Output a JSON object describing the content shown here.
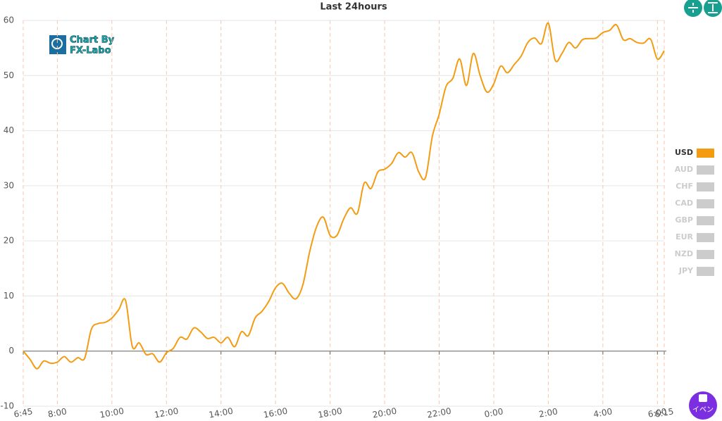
{
  "chart_data": {
    "type": "line",
    "title": "Last 24hours",
    "x": [
      "6:45",
      "7:00",
      "7:15",
      "7:30",
      "7:45",
      "8:00",
      "8:15",
      "8:30",
      "8:45",
      "9:00",
      "9:15",
      "9:30",
      "9:45",
      "10:00",
      "10:15",
      "10:30",
      "10:45",
      "11:00",
      "11:15",
      "11:30",
      "11:45",
      "12:00",
      "12:15",
      "12:30",
      "12:45",
      "13:00",
      "13:15",
      "13:30",
      "13:45",
      "14:00",
      "14:15",
      "14:30",
      "14:45",
      "15:00",
      "15:15",
      "15:30",
      "15:45",
      "16:00",
      "16:15",
      "16:30",
      "16:45",
      "17:00",
      "17:15",
      "17:30",
      "17:45",
      "18:00",
      "18:15",
      "18:30",
      "18:45",
      "19:00",
      "19:15",
      "19:30",
      "19:45",
      "20:00",
      "20:15",
      "20:30",
      "20:45",
      "21:00",
      "21:15",
      "21:30",
      "21:45",
      "22:00",
      "22:15",
      "22:30",
      "22:45",
      "23:00",
      "23:15",
      "23:30",
      "23:45",
      "0:00",
      "0:15",
      "0:30",
      "0:45",
      "1:00",
      "1:15",
      "1:30",
      "1:45",
      "2:00",
      "2:15",
      "2:30",
      "2:45",
      "3:00",
      "3:15",
      "3:30",
      "3:45",
      "4:00",
      "4:15",
      "4:30",
      "4:45",
      "5:00",
      "5:15",
      "5:30",
      "5:45",
      "6:00",
      "6:15"
    ],
    "series": [
      {
        "name": "USD",
        "color": "#f39c12",
        "values": [
          0,
          -1.5,
          -3.2,
          -1.8,
          -2.2,
          -2,
          -1,
          -2,
          -1.2,
          -1.3,
          4,
          5,
          5.2,
          6,
          7.5,
          9.2,
          0.8,
          1.5,
          -0.6,
          -0.5,
          -2,
          -0.3,
          0.5,
          2.5,
          2.2,
          4.2,
          3.5,
          2.3,
          2.5,
          1.5,
          2.5,
          0.8,
          3.5,
          2.8,
          6,
          7.2,
          9,
          11.5,
          12.3,
          10.5,
          9.5,
          12,
          18,
          22.5,
          24.3,
          21,
          21,
          24,
          26,
          25,
          30.5,
          29.5,
          32.5,
          33,
          34,
          36,
          35.2,
          36,
          32.5,
          31.5,
          39,
          43,
          48,
          49.5,
          53,
          48.2,
          54,
          50,
          47,
          48.5,
          51.7,
          50.5,
          52,
          53.5,
          56,
          56.8,
          55.8,
          59.5,
          52.8,
          54,
          56,
          55,
          56.5,
          56.7,
          56.8,
          57.8,
          58.2,
          59.2,
          56.5,
          56.7,
          56,
          55.9,
          56.6,
          53,
          54.5
        ]
      }
    ],
    "hidden_series": [
      "AUD",
      "CHF",
      "CAD",
      "GBP",
      "EUR",
      "NZD",
      "JPY"
    ],
    "hidden_color": "#cccccc",
    "xlim": [
      "6:45",
      "6:15"
    ],
    "xticks": [
      "6:45",
      "8:00",
      "10:00",
      "12:00",
      "14:00",
      "16:00",
      "18:00",
      "20:00",
      "22:00",
      "0:00",
      "2:00",
      "4:00",
      "6:00",
      "6:15"
    ],
    "ylim": [
      -10,
      60
    ],
    "yticks": [
      -10,
      0,
      10,
      20,
      30,
      40,
      50,
      60
    ],
    "grid": true,
    "legend": "right"
  },
  "logo": {
    "lines": [
      "Chart By",
      "FX-Labo"
    ]
  },
  "event_button": {
    "label": "イベン"
  }
}
